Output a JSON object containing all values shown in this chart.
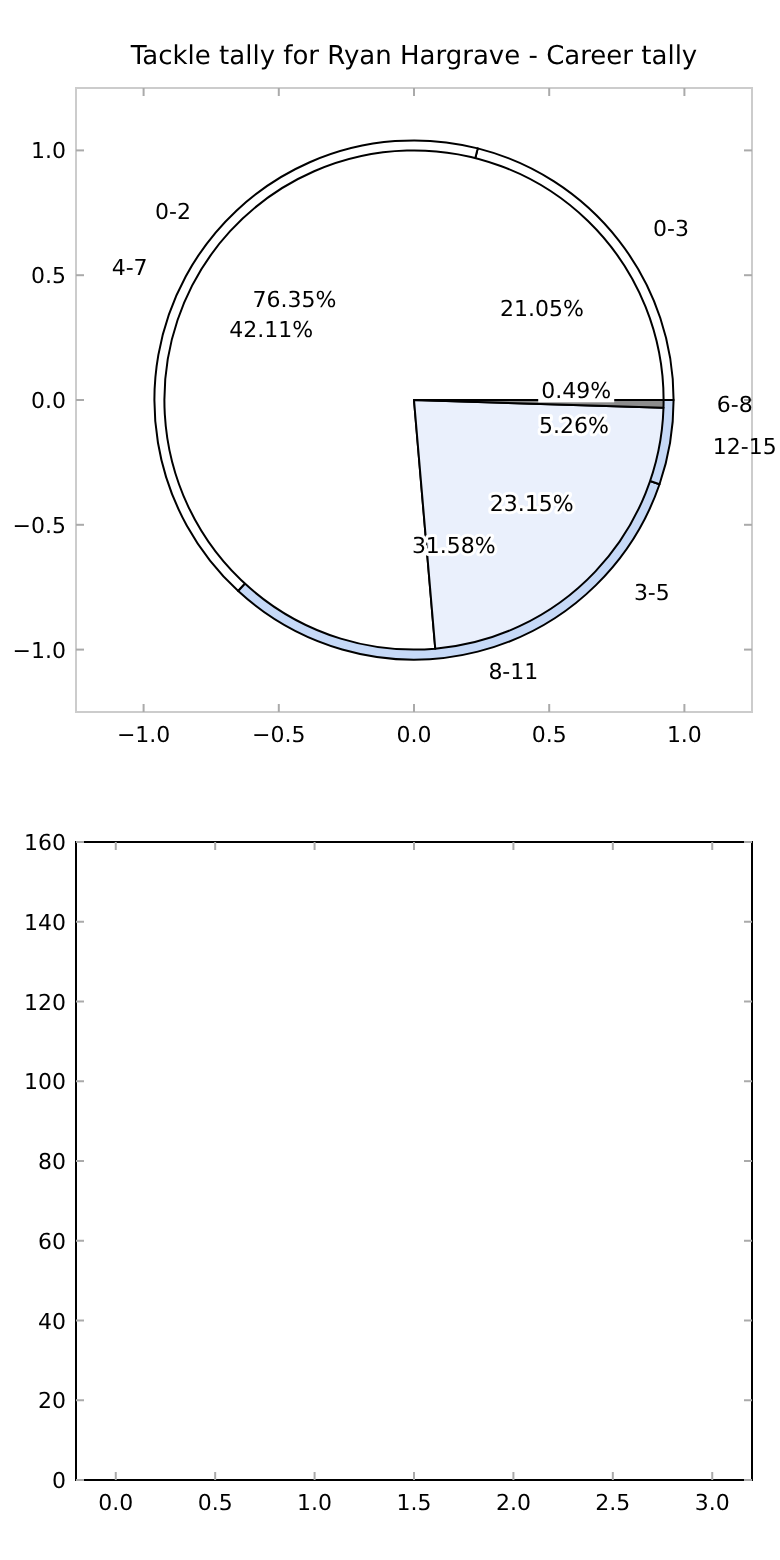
{
  "chart_data": [
    {
      "type": "scatter",
      "title": "Tackle tally for Ryan Hargrave - Career tally",
      "xlim": [
        -1.25,
        1.25
      ],
      "ylim": [
        -1.25,
        1.25
      ],
      "xticks": [
        {
          "value": -1,
          "label": "−1.0"
        },
        {
          "value": -0.5,
          "label": "−0.5"
        },
        {
          "value": 0,
          "label": "0.0"
        },
        {
          "value": 0.5,
          "label": "0.5"
        },
        {
          "value": 1,
          "label": "1.0"
        }
      ],
      "yticks": [
        {
          "value": -1,
          "label": "−1.0"
        },
        {
          "value": -0.5,
          "label": "−0.5"
        },
        {
          "value": 0,
          "label": "0.0"
        },
        {
          "value": 0.5,
          "label": "0.5"
        },
        {
          "value": 1,
          "label": "1.0"
        }
      ]
    },
    {
      "type": "pie",
      "categories": [
        "0-3",
        "4-7",
        "8-11",
        "12-15"
      ],
      "values": [
        21.05,
        42.11,
        31.58,
        5.26
      ],
      "value_labels": [
        "21.05%",
        "42.11%",
        "31.58%",
        "5.26%"
      ],
      "colors": [
        "#ffffff",
        "#ffffff",
        "#c6d9f7",
        "#c6d9f7"
      ]
    },
    {
      "type": "pie",
      "categories": [
        "0-2",
        "3-5",
        "6-8"
      ],
      "values": [
        76.35,
        23.15,
        0.49
      ],
      "value_labels": [
        "76.35%",
        "23.15%",
        "0.49%"
      ],
      "colors": [
        "#ffffff",
        "#eaf0fc",
        "#8c8c8c"
      ]
    },
    {
      "type": "scatter",
      "xlim": [
        -0.2,
        3.2
      ],
      "ylim": [
        0,
        160
      ],
      "xticks": [
        {
          "value": 0,
          "label": "0.0"
        },
        {
          "value": 0.5,
          "label": "0.5"
        },
        {
          "value": 1,
          "label": "1.0"
        },
        {
          "value": 1.5,
          "label": "1.5"
        },
        {
          "value": 2,
          "label": "2.0"
        },
        {
          "value": 2.5,
          "label": "2.5"
        },
        {
          "value": 3,
          "label": "3.0"
        }
      ],
      "yticks": [
        0,
        20,
        40,
        60,
        80,
        100,
        120,
        140,
        160
      ]
    }
  ]
}
